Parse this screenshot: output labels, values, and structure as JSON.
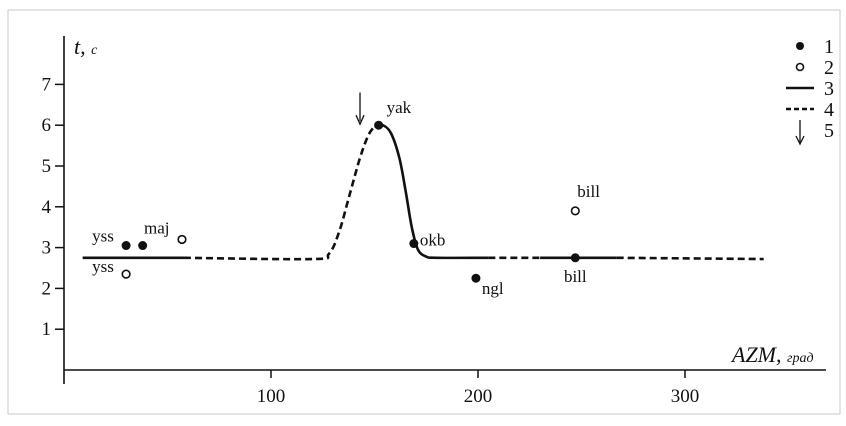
{
  "chart_data": {
    "type": "scatter",
    "xlabel": "AZM,",
    "xunit": "град",
    "ylabel": "t,",
    "yunit": "с",
    "xlim": [
      0,
      370
    ],
    "ylim": [
      0,
      7.8
    ],
    "x_ticks": [
      100,
      200,
      300
    ],
    "y_ticks": [
      1,
      2,
      3,
      4,
      5,
      6,
      7
    ],
    "points": [
      {
        "label": "yss",
        "x": 30,
        "y": 3.05,
        "marker": "filled"
      },
      {
        "label": "",
        "x": 38,
        "y": 3.05,
        "marker": "filled"
      },
      {
        "label": "maj",
        "x": 57,
        "y": 3.2,
        "marker": "open"
      },
      {
        "label": "yss",
        "x": 30,
        "y": 2.35,
        "marker": "open"
      },
      {
        "label": "yak",
        "x": 152,
        "y": 6.0,
        "marker": "filled"
      },
      {
        "label": "okb",
        "x": 169,
        "y": 3.1,
        "marker": "filled"
      },
      {
        "label": "ngl",
        "x": 199,
        "y": 2.25,
        "marker": "filled"
      },
      {
        "label": "bill",
        "x": 247,
        "y": 3.9,
        "marker": "open"
      },
      {
        "label": "bill",
        "x": 247,
        "y": 2.75,
        "marker": "filled"
      }
    ],
    "curves": [
      {
        "style": "solid",
        "points": [
          [
            9,
            2.75
          ],
          [
            58,
            2.75
          ]
        ]
      },
      {
        "style": "dashed",
        "points": [
          [
            58,
            2.75
          ],
          [
            120,
            2.72
          ],
          [
            128,
            2.85
          ],
          [
            133,
            3.4
          ],
          [
            138,
            4.3
          ],
          [
            143,
            5.2
          ],
          [
            147,
            5.75
          ],
          [
            150,
            5.97
          ]
        ]
      },
      {
        "style": "solid",
        "points": [
          [
            150,
            5.97
          ],
          [
            154,
            6.0
          ],
          [
            158,
            5.8
          ],
          [
            162,
            5.2
          ],
          [
            165,
            4.4
          ],
          [
            168,
            3.5
          ],
          [
            171,
            2.95
          ],
          [
            175,
            2.78
          ],
          [
            180,
            2.75
          ],
          [
            205,
            2.75
          ]
        ]
      },
      {
        "style": "dashed",
        "points": [
          [
            205,
            2.75
          ],
          [
            230,
            2.75
          ]
        ]
      },
      {
        "style": "solid",
        "points": [
          [
            230,
            2.75
          ],
          [
            267,
            2.75
          ]
        ]
      },
      {
        "style": "dashed",
        "points": [
          [
            267,
            2.75
          ],
          [
            338,
            2.72
          ]
        ]
      }
    ],
    "arrow_marker": {
      "x": 143,
      "y_from": 6.8,
      "y_to": 6.0
    },
    "legend": {
      "position": "top-right",
      "items": [
        {
          "label": "1",
          "symbol": "filled-dot"
        },
        {
          "label": "2",
          "symbol": "open-dot"
        },
        {
          "label": "3",
          "symbol": "solid-line"
        },
        {
          "label": "4",
          "symbol": "dashed-line"
        },
        {
          "label": "5",
          "symbol": "arrow"
        }
      ]
    }
  }
}
